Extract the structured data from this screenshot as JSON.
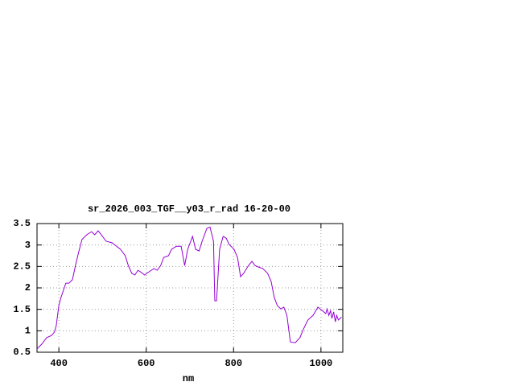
{
  "chart_data": {
    "type": "line",
    "title": "sr_2026_003_TGF__y03_r_rad 16-20-00",
    "x_label": "nm",
    "x": [
      350,
      361,
      372,
      383,
      390,
      394,
      400,
      405,
      416,
      423,
      431,
      438,
      445,
      453,
      464,
      475,
      482,
      490,
      497,
      508,
      522,
      541,
      552,
      559,
      567,
      574,
      581,
      589,
      596,
      607,
      618,
      625,
      633,
      640,
      651,
      658,
      669,
      680,
      688,
      695,
      706,
      713,
      721,
      728,
      739,
      746,
      754,
      757,
      761,
      768,
      776,
      783,
      790,
      801,
      809,
      816,
      823,
      834,
      842,
      849,
      856,
      867,
      878,
      886,
      893,
      900,
      908,
      915,
      922,
      930,
      941,
      952,
      959,
      970,
      982,
      993,
      1003,
      1011,
      1014,
      1018,
      1022,
      1025,
      1029,
      1033,
      1036,
      1040,
      1044,
      1047
    ],
    "series": [
      {
        "color": "#9400d3",
        "values": [
          0.58,
          0.69,
          0.84,
          0.89,
          0.97,
          1.12,
          1.59,
          1.78,
          2.11,
          2.11,
          2.19,
          2.52,
          2.82,
          3.13,
          3.24,
          3.31,
          3.24,
          3.33,
          3.24,
          3.09,
          3.05,
          2.9,
          2.75,
          2.52,
          2.34,
          2.3,
          2.41,
          2.36,
          2.3,
          2.38,
          2.45,
          2.41,
          2.52,
          2.71,
          2.75,
          2.9,
          2.97,
          2.97,
          2.52,
          2.9,
          3.2,
          2.9,
          2.86,
          3.09,
          3.39,
          3.42,
          3.09,
          1.7,
          1.7,
          2.9,
          3.2,
          3.16,
          3.01,
          2.9,
          2.71,
          2.26,
          2.34,
          2.52,
          2.62,
          2.52,
          2.49,
          2.45,
          2.34,
          2.15,
          1.78,
          1.59,
          1.51,
          1.55,
          1.36,
          0.74,
          0.72,
          0.84,
          1.02,
          1.25,
          1.36,
          1.55,
          1.47,
          1.4,
          1.51,
          1.36,
          1.47,
          1.29,
          1.44,
          1.21,
          1.36,
          1.25,
          1.29,
          1.32
        ]
      }
    ],
    "xlim": [
      350,
      1050
    ],
    "xticks": [
      400,
      600,
      800,
      1000
    ],
    "ylim": [
      0.5,
      3.5
    ],
    "yticks": [
      0.5,
      1,
      1.5,
      2,
      2.5,
      3,
      3.5
    ],
    "grid": true
  }
}
